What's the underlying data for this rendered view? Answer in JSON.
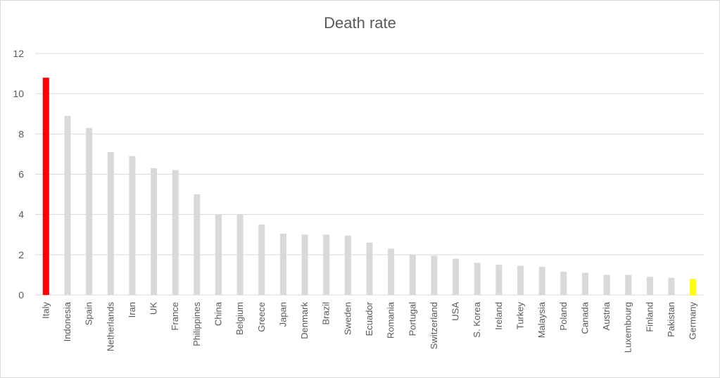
{
  "chart_data": {
    "type": "bar",
    "title": "Death rate",
    "xlabel": "",
    "ylabel": "",
    "ylim": [
      0,
      12
    ],
    "yticks": [
      0,
      2,
      4,
      6,
      8,
      10,
      12
    ],
    "grid": true,
    "categories": [
      "Italy",
      "Indonesia",
      "Spain",
      "Netherlands",
      "Iran",
      "UK",
      "France",
      "Philippines",
      "China",
      "Belgium",
      "Greece",
      "Japan",
      "Denmark",
      "Brazil",
      "Sweden",
      "Ecuador",
      "Romania",
      "Portugal",
      "Switzerland",
      "USA",
      "S. Korea",
      "Ireland",
      "Turkey",
      "Malaysia",
      "Poland",
      "Canada",
      "Austria",
      "Luxembourg",
      "Finland",
      "Pakistan",
      "Germany"
    ],
    "values": [
      10.8,
      8.9,
      8.3,
      7.1,
      6.9,
      6.3,
      6.2,
      5.0,
      4.0,
      4.0,
      3.5,
      3.05,
      3.0,
      3.0,
      2.95,
      2.6,
      2.3,
      2.0,
      1.95,
      1.8,
      1.6,
      1.5,
      1.45,
      1.4,
      1.15,
      1.1,
      1.0,
      1.0,
      0.9,
      0.85,
      0.8
    ],
    "colors": {
      "default": "#d9d9d9",
      "highlight_first": "#ff0000",
      "highlight_last": "#ffff00",
      "grid": "#d9d9d9",
      "text": "#595959"
    }
  }
}
